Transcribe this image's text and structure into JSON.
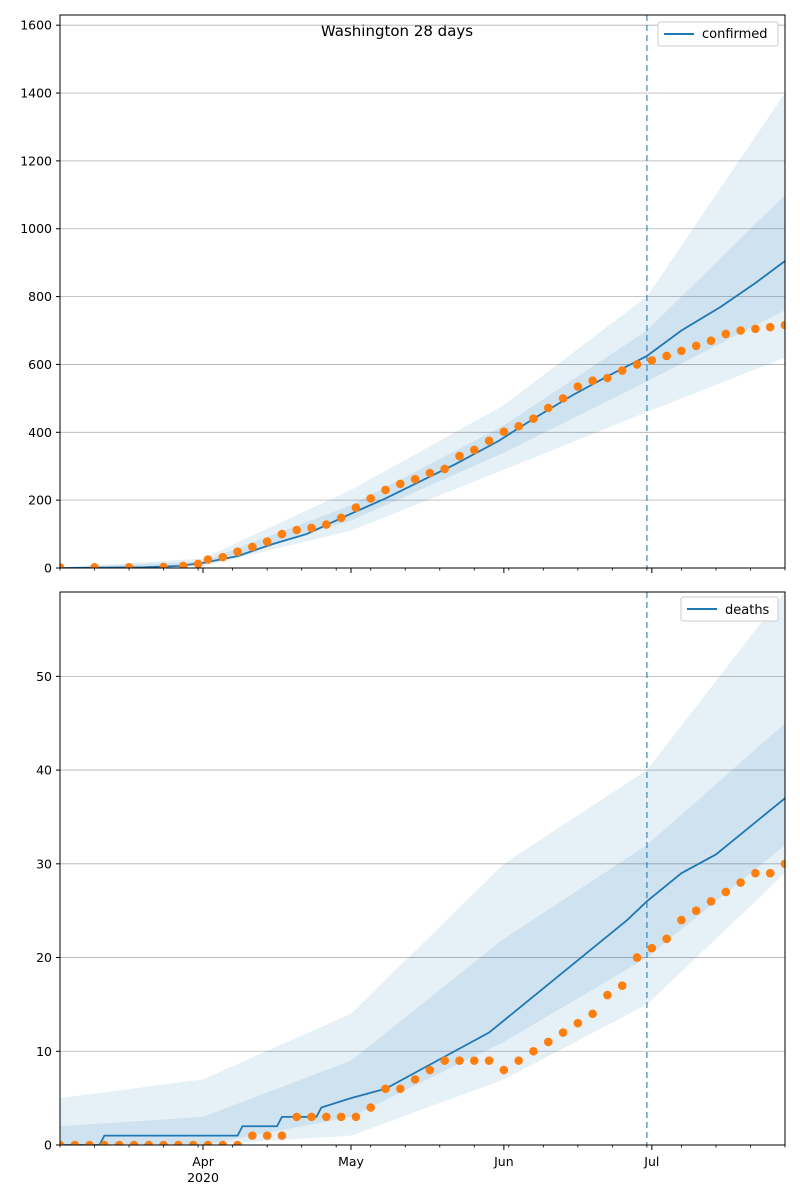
{
  "chart_data": [
    {
      "type": "line",
      "title": "Washington 28 days",
      "x_axis": {
        "type": "date",
        "range": [
          "2020-03-03",
          "2020-07-28"
        ],
        "ticks": [
          "Apr",
          "May",
          "Jun",
          "Jul"
        ],
        "year_label": "2020"
      },
      "ylim": [
        0,
        1630
      ],
      "yticks": [
        0,
        200,
        400,
        600,
        800,
        1000,
        1200,
        1400,
        1600
      ],
      "grid": "horizontal",
      "legend": {
        "placement": "top-right",
        "entries": [
          "confirmed"
        ]
      },
      "forecast_start": "2020-06-30",
      "colors": {
        "model": "#1f77b4",
        "observed": "#ff7f0e",
        "band": "#1f77b4"
      },
      "series": [
        {
          "name": "confirmed",
          "kind": "line",
          "points": [
            [
              "2020-03-03",
              0
            ],
            [
              "2020-03-20",
              2
            ],
            [
              "2020-03-27",
              6
            ],
            [
              "2020-04-01",
              15
            ],
            [
              "2020-04-08",
              35
            ],
            [
              "2020-04-15",
              70
            ],
            [
              "2020-04-22",
              100
            ],
            [
              "2020-05-01",
              160
            ],
            [
              "2020-05-08",
              205
            ],
            [
              "2020-05-15",
              255
            ],
            [
              "2020-05-22",
              305
            ],
            [
              "2020-05-31",
              375
            ],
            [
              "2020-06-07",
              440
            ],
            [
              "2020-06-15",
              510
            ],
            [
              "2020-06-22",
              565
            ],
            [
              "2020-06-30",
              625
            ],
            [
              "2020-07-07",
              700
            ],
            [
              "2020-07-15",
              770
            ],
            [
              "2020-07-22",
              840
            ],
            [
              "2020-07-28",
              905
            ]
          ]
        },
        {
          "name": "confirmed observed",
          "kind": "scatter",
          "points": [
            [
              "2020-03-03",
              2
            ],
            [
              "2020-03-10",
              2
            ],
            [
              "2020-03-17",
              2
            ],
            [
              "2020-03-24",
              3
            ],
            [
              "2020-03-28",
              6
            ],
            [
              "2020-03-31",
              12
            ],
            [
              "2020-04-02",
              25
            ],
            [
              "2020-04-05",
              32
            ],
            [
              "2020-04-08",
              48
            ],
            [
              "2020-04-11",
              62
            ],
            [
              "2020-04-14",
              78
            ],
            [
              "2020-04-17",
              100
            ],
            [
              "2020-04-20",
              112
            ],
            [
              "2020-04-23",
              118
            ],
            [
              "2020-04-26",
              128
            ],
            [
              "2020-04-29",
              148
            ],
            [
              "2020-05-02",
              178
            ],
            [
              "2020-05-05",
              205
            ],
            [
              "2020-05-08",
              230
            ],
            [
              "2020-05-11",
              248
            ],
            [
              "2020-05-14",
              262
            ],
            [
              "2020-05-17",
              280
            ],
            [
              "2020-05-20",
              292
            ],
            [
              "2020-05-23",
              330
            ],
            [
              "2020-05-26",
              348
            ],
            [
              "2020-05-29",
              375
            ],
            [
              "2020-06-01",
              402
            ],
            [
              "2020-06-04",
              418
            ],
            [
              "2020-06-07",
              440
            ],
            [
              "2020-06-10",
              472
            ],
            [
              "2020-06-13",
              500
            ],
            [
              "2020-06-16",
              535
            ],
            [
              "2020-06-19",
              552
            ],
            [
              "2020-06-22",
              560
            ],
            [
              "2020-06-25",
              582
            ],
            [
              "2020-06-28",
              600
            ],
            [
              "2020-07-01",
              612
            ],
            [
              "2020-07-04",
              625
            ],
            [
              "2020-07-07",
              640
            ],
            [
              "2020-07-10",
              655
            ],
            [
              "2020-07-13",
              670
            ],
            [
              "2020-07-16",
              690
            ],
            [
              "2020-07-19",
              700
            ],
            [
              "2020-07-22",
              705
            ],
            [
              "2020-07-25",
              710
            ],
            [
              "2020-07-28",
              716
            ]
          ]
        },
        {
          "name": "confirmed outer band",
          "kind": "band",
          "lower": [
            [
              "2020-03-03",
              0
            ],
            [
              "2020-04-01",
              5
            ],
            [
              "2020-05-01",
              110
            ],
            [
              "2020-06-01",
              290
            ],
            [
              "2020-06-30",
              460
            ],
            [
              "2020-07-28",
              620
            ]
          ],
          "upper": [
            [
              "2020-03-03",
              2
            ],
            [
              "2020-04-01",
              28
            ],
            [
              "2020-05-01",
              230
            ],
            [
              "2020-06-01",
              480
            ],
            [
              "2020-06-30",
              800
            ],
            [
              "2020-07-28",
              1400
            ]
          ]
        },
        {
          "name": "confirmed inner band",
          "kind": "band",
          "lower": [
            [
              "2020-03-03",
              0
            ],
            [
              "2020-04-01",
              9
            ],
            [
              "2020-05-01",
              140
            ],
            [
              "2020-06-01",
              340
            ],
            [
              "2020-06-30",
              550
            ],
            [
              "2020-07-28",
              760
            ]
          ],
          "upper": [
            [
              "2020-03-03",
              1
            ],
            [
              "2020-04-01",
              20
            ],
            [
              "2020-05-01",
              185
            ],
            [
              "2020-06-01",
              420
            ],
            [
              "2020-06-30",
              700
            ],
            [
              "2020-07-28",
              1100
            ]
          ]
        }
      ]
    },
    {
      "type": "line",
      "title": "",
      "x_axis": {
        "type": "date",
        "range": [
          "2020-03-03",
          "2020-07-28"
        ],
        "ticks": [
          "Apr",
          "May",
          "Jun",
          "Jul"
        ],
        "year_label": "2020"
      },
      "ylim": [
        0,
        59
      ],
      "yticks": [
        0,
        10,
        20,
        30,
        40,
        50
      ],
      "grid": "horizontal",
      "legend": {
        "placement": "top-right",
        "entries": [
          "deaths"
        ]
      },
      "forecast_start": "2020-06-30",
      "colors": {
        "model": "#1f77b4",
        "observed": "#ff7f0e",
        "band": "#1f77b4"
      },
      "series": [
        {
          "name": "deaths",
          "kind": "line",
          "points": [
            [
              "2020-03-03",
              0
            ],
            [
              "2020-03-11",
              0
            ],
            [
              "2020-03-12",
              1
            ],
            [
              "2020-04-08",
              1
            ],
            [
              "2020-04-09",
              2
            ],
            [
              "2020-04-16",
              2
            ],
            [
              "2020-04-17",
              3
            ],
            [
              "2020-04-24",
              3
            ],
            [
              "2020-04-25",
              4
            ],
            [
              "2020-05-01",
              5
            ],
            [
              "2020-05-08",
              6
            ],
            [
              "2020-05-15",
              8
            ],
            [
              "2020-05-22",
              10
            ],
            [
              "2020-05-29",
              12
            ],
            [
              "2020-06-05",
              15
            ],
            [
              "2020-06-12",
              18
            ],
            [
              "2020-06-19",
              21
            ],
            [
              "2020-06-26",
              24
            ],
            [
              "2020-06-30",
              26
            ],
            [
              "2020-07-07",
              29
            ],
            [
              "2020-07-14",
              31
            ],
            [
              "2020-07-21",
              34
            ],
            [
              "2020-07-28",
              37
            ]
          ]
        },
        {
          "name": "deaths observed",
          "kind": "scatter",
          "points": [
            [
              "2020-03-03",
              0
            ],
            [
              "2020-03-06",
              0
            ],
            [
              "2020-03-09",
              0
            ],
            [
              "2020-03-12",
              0
            ],
            [
              "2020-03-15",
              0
            ],
            [
              "2020-03-18",
              0
            ],
            [
              "2020-03-21",
              0
            ],
            [
              "2020-03-24",
              0
            ],
            [
              "2020-03-27",
              0
            ],
            [
              "2020-03-30",
              0
            ],
            [
              "2020-04-02",
              0
            ],
            [
              "2020-04-05",
              0
            ],
            [
              "2020-04-08",
              0
            ],
            [
              "2020-04-11",
              1
            ],
            [
              "2020-04-14",
              1
            ],
            [
              "2020-04-17",
              1
            ],
            [
              "2020-04-20",
              3
            ],
            [
              "2020-04-23",
              3
            ],
            [
              "2020-04-26",
              3
            ],
            [
              "2020-04-29",
              3
            ],
            [
              "2020-05-02",
              3
            ],
            [
              "2020-05-05",
              4
            ],
            [
              "2020-05-08",
              6
            ],
            [
              "2020-05-11",
              6
            ],
            [
              "2020-05-14",
              7
            ],
            [
              "2020-05-17",
              8
            ],
            [
              "2020-05-20",
              9
            ],
            [
              "2020-05-23",
              9
            ],
            [
              "2020-05-26",
              9
            ],
            [
              "2020-05-29",
              9
            ],
            [
              "2020-06-01",
              8
            ],
            [
              "2020-06-04",
              9
            ],
            [
              "2020-06-07",
              10
            ],
            [
              "2020-06-10",
              11
            ],
            [
              "2020-06-13",
              12
            ],
            [
              "2020-06-16",
              13
            ],
            [
              "2020-06-19",
              14
            ],
            [
              "2020-06-22",
              16
            ],
            [
              "2020-06-25",
              17
            ],
            [
              "2020-06-28",
              20
            ],
            [
              "2020-07-01",
              21
            ],
            [
              "2020-07-04",
              22
            ],
            [
              "2020-07-07",
              24
            ],
            [
              "2020-07-10",
              25
            ],
            [
              "2020-07-13",
              26
            ],
            [
              "2020-07-16",
              27
            ],
            [
              "2020-07-19",
              28
            ],
            [
              "2020-07-22",
              29
            ],
            [
              "2020-07-25",
              29
            ],
            [
              "2020-07-28",
              30
            ]
          ]
        },
        {
          "name": "deaths outer band",
          "kind": "band",
          "lower": [
            [
              "2020-03-03",
              0
            ],
            [
              "2020-04-01",
              0
            ],
            [
              "2020-05-01",
              1
            ],
            [
              "2020-06-01",
              7
            ],
            [
              "2020-06-30",
              15
            ],
            [
              "2020-07-28",
              29
            ]
          ],
          "upper": [
            [
              "2020-03-03",
              5
            ],
            [
              "2020-04-01",
              7
            ],
            [
              "2020-05-01",
              14
            ],
            [
              "2020-06-01",
              30
            ],
            [
              "2020-06-30",
              40
            ],
            [
              "2020-07-28",
              59
            ]
          ]
        },
        {
          "name": "deaths inner band",
          "kind": "band",
          "lower": [
            [
              "2020-03-03",
              0
            ],
            [
              "2020-04-01",
              0
            ],
            [
              "2020-05-01",
              3
            ],
            [
              "2020-06-01",
              11
            ],
            [
              "2020-06-30",
              20
            ],
            [
              "2020-07-28",
              32
            ]
          ],
          "upper": [
            [
              "2020-03-03",
              2
            ],
            [
              "2020-04-01",
              3
            ],
            [
              "2020-05-01",
              9
            ],
            [
              "2020-06-01",
              22
            ],
            [
              "2020-06-30",
              32
            ],
            [
              "2020-07-28",
              45
            ]
          ]
        }
      ]
    }
  ]
}
